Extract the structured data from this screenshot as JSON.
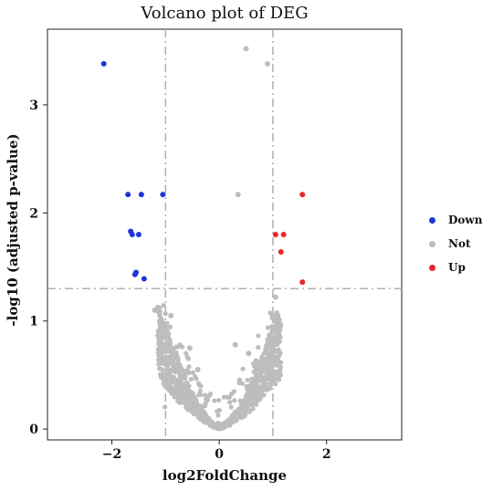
{
  "chart_data": {
    "type": "scatter",
    "title": "Volcano plot of DEG",
    "xlabel": "log2FoldChange",
    "ylabel": "-log10 (adjusted p-value)",
    "xlim": [
      -3.2,
      3.4
    ],
    "ylim": [
      -0.1,
      3.7
    ],
    "x_ticks": [
      -2,
      0,
      2
    ],
    "x_tick_labels": [
      "−2",
      "0",
      "2"
    ],
    "y_ticks": [
      0,
      1,
      2,
      3
    ],
    "y_tick_labels": [
      "0",
      "1",
      "2",
      "3"
    ],
    "grid": false,
    "legend_position": "right",
    "thresholds": {
      "x": [
        -1,
        1
      ],
      "y": 1.3
    },
    "colors": {
      "Down": "#1f35d6",
      "Not": "#bdbdbd",
      "Up": "#e8242b"
    },
    "series": [
      {
        "name": "Down",
        "x": [
          -2.15,
          -1.7,
          -1.45,
          -1.05,
          -1.65,
          -1.62,
          -1.5,
          -1.57,
          -1.55,
          -1.4
        ],
        "y": [
          3.38,
          2.17,
          2.17,
          2.17,
          1.83,
          1.8,
          1.8,
          1.43,
          1.45,
          1.39
        ]
      },
      {
        "name": "Not",
        "x": [
          0.5,
          0.9,
          0.35,
          1.05,
          -1.2,
          -1.1,
          -0.9,
          -0.55,
          -0.4,
          0.3,
          0.55,
          0.95,
          0.8
        ],
        "y": [
          3.52,
          3.38,
          2.17,
          1.22,
          1.1,
          1.0,
          1.05,
          0.75,
          0.55,
          0.78,
          0.7,
          0.78,
          0.6
        ]
      },
      {
        "name": "Up",
        "x": [
          1.55,
          1.05,
          1.2,
          1.15,
          1.55
        ],
        "y": [
          2.17,
          1.8,
          1.8,
          1.64,
          1.36
        ]
      }
    ]
  },
  "legend": {
    "items": [
      "Down",
      "Not",
      "Up"
    ]
  }
}
